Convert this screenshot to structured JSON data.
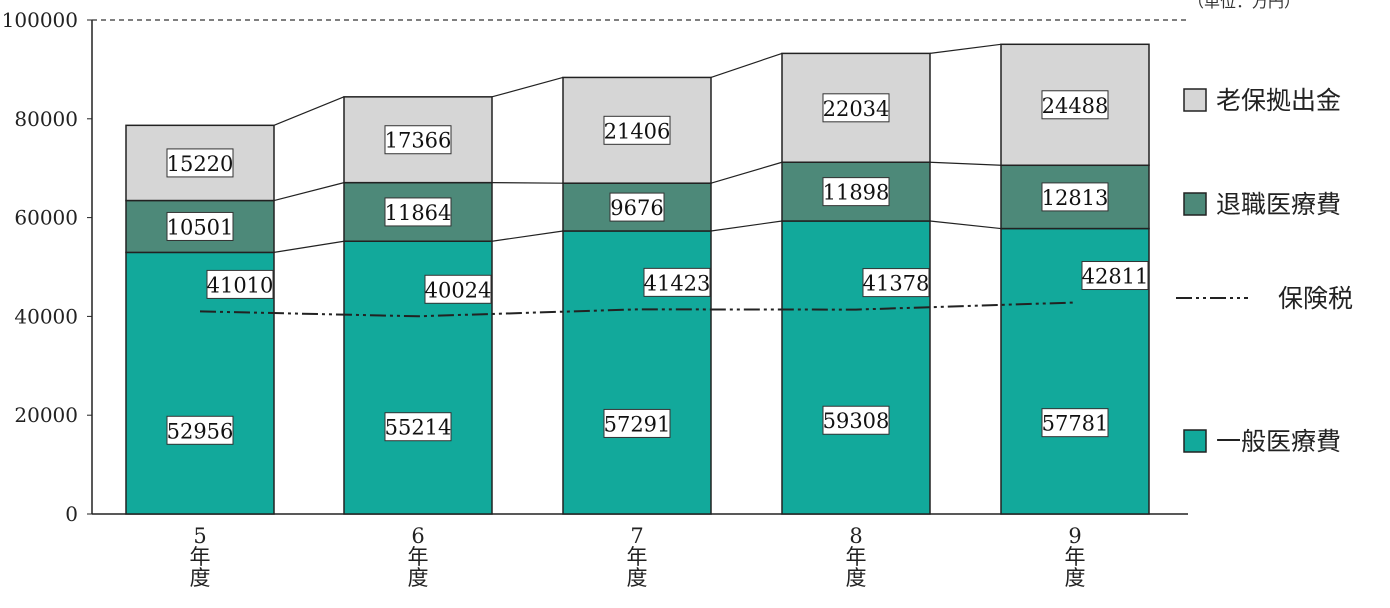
{
  "unit_note": "（単位：万円）",
  "chart_data": {
    "type": "bar",
    "stacked": true,
    "categories": [
      [
        "5",
        "年",
        "度"
      ],
      [
        "6",
        "年",
        "度"
      ],
      [
        "7",
        "年",
        "度"
      ],
      [
        "8",
        "年",
        "度"
      ],
      [
        "9",
        "年",
        "度"
      ]
    ],
    "ylim": [
      0,
      100000
    ],
    "yticks": [
      "0",
      "20000",
      "40000",
      "60000",
      "80000",
      "100000"
    ],
    "ytick_values": [
      0,
      20000,
      40000,
      60000,
      80000,
      100000
    ],
    "series": [
      {
        "name": "一般医療費",
        "color": "#12a99b",
        "values": [
          52956,
          55214,
          57291,
          59308,
          57781
        ]
      },
      {
        "name": "退職医療費",
        "color": "#4d8979",
        "values": [
          10501,
          11864,
          9676,
          11898,
          12813
        ]
      },
      {
        "name": "老保拠出金",
        "color": "#d6d6d6",
        "values": [
          15220,
          17366,
          21406,
          22034,
          24488
        ]
      }
    ],
    "line_series": {
      "name": "保険税",
      "values": [
        41010,
        40024,
        41423,
        41378,
        42811
      ],
      "style": "dash-dot-dot",
      "color": "#222222"
    },
    "legend": [
      {
        "label": "老保拠出金",
        "kind": "box",
        "color": "#d6d6d6"
      },
      {
        "label": "退職医療費",
        "kind": "box",
        "color": "#4d8979"
      },
      {
        "label": "保険税",
        "kind": "line",
        "color": "#222222"
      },
      {
        "label": "一般医療費",
        "kind": "box",
        "color": "#12a99b"
      }
    ],
    "legend_position": "right",
    "top_gridline": "dashed"
  }
}
